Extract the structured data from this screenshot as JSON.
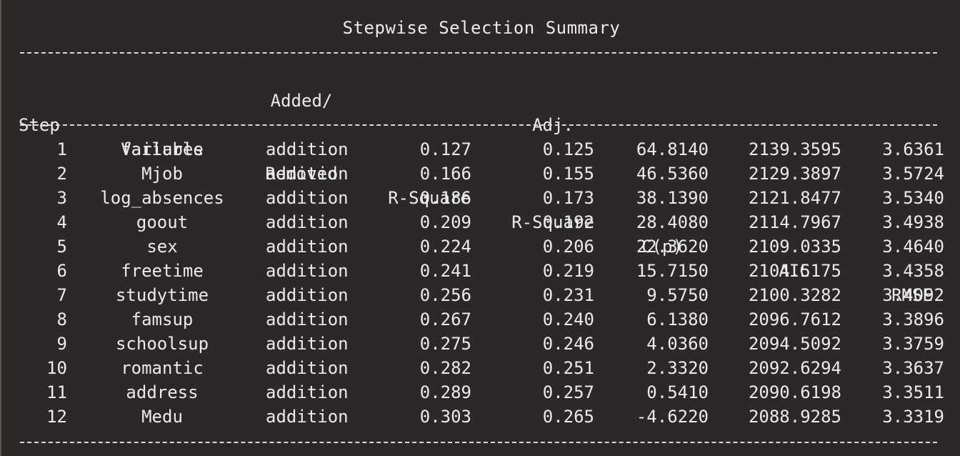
{
  "title": "Stepwise Selection Summary",
  "headers": {
    "step": "Step",
    "variable": "Variable",
    "added_top": "Added/",
    "added_bottom": "Removed",
    "r_square": "R-Square",
    "adj_top": "Adj.",
    "adj_bottom": "R-Square",
    "cp": "C(p)",
    "aic": "AIC",
    "rmse": "RMSE"
  },
  "rows": [
    {
      "step": "1",
      "variable": "failures",
      "action": "addition",
      "r2": "0.127",
      "adj_r2": "0.125",
      "cp": "64.8140",
      "aic": "2139.3595",
      "rmse": "3.6361"
    },
    {
      "step": "2",
      "variable": "Mjob",
      "action": "addition",
      "r2": "0.166",
      "adj_r2": "0.155",
      "cp": "46.5360",
      "aic": "2129.3897",
      "rmse": "3.5724"
    },
    {
      "step": "3",
      "variable": "log_absences",
      "action": "addition",
      "r2": "0.186",
      "adj_r2": "0.173",
      "cp": "38.1390",
      "aic": "2121.8477",
      "rmse": "3.5340"
    },
    {
      "step": "4",
      "variable": "goout",
      "action": "addition",
      "r2": "0.209",
      "adj_r2": "0.192",
      "cp": "28.4080",
      "aic": "2114.7967",
      "rmse": "3.4938"
    },
    {
      "step": "5",
      "variable": "sex",
      "action": "addition",
      "r2": "0.224",
      "adj_r2": "0.206",
      "cp": "22.3620",
      "aic": "2109.0335",
      "rmse": "3.4640"
    },
    {
      "step": "6",
      "variable": "freetime",
      "action": "addition",
      "r2": "0.241",
      "adj_r2": "0.219",
      "cp": "15.7150",
      "aic": "2104.5175",
      "rmse": "3.4358"
    },
    {
      "step": "7",
      "variable": "studytime",
      "action": "addition",
      "r2": "0.256",
      "adj_r2": "0.231",
      "cp": "9.5750",
      "aic": "2100.3282",
      "rmse": "3.4092"
    },
    {
      "step": "8",
      "variable": "famsup",
      "action": "addition",
      "r2": "0.267",
      "adj_r2": "0.240",
      "cp": "6.1380",
      "aic": "2096.7612",
      "rmse": "3.3896"
    },
    {
      "step": "9",
      "variable": "schoolsup",
      "action": "addition",
      "r2": "0.275",
      "adj_r2": "0.246",
      "cp": "4.0360",
      "aic": "2094.5092",
      "rmse": "3.3759"
    },
    {
      "step": "10",
      "variable": "romantic",
      "action": "addition",
      "r2": "0.282",
      "adj_r2": "0.251",
      "cp": "2.3320",
      "aic": "2092.6294",
      "rmse": "3.3637"
    },
    {
      "step": "11",
      "variable": "address",
      "action": "addition",
      "r2": "0.289",
      "adj_r2": "0.257",
      "cp": "0.5410",
      "aic": "2090.6198",
      "rmse": "3.3511"
    },
    {
      "step": "12",
      "variable": "Medu",
      "action": "addition",
      "r2": "0.303",
      "adj_r2": "0.265",
      "cp": "-4.6220",
      "aic": "2088.9285",
      "rmse": "3.3319"
    }
  ],
  "colors": {
    "background": "#2b2827",
    "text": "#ebebeb"
  }
}
